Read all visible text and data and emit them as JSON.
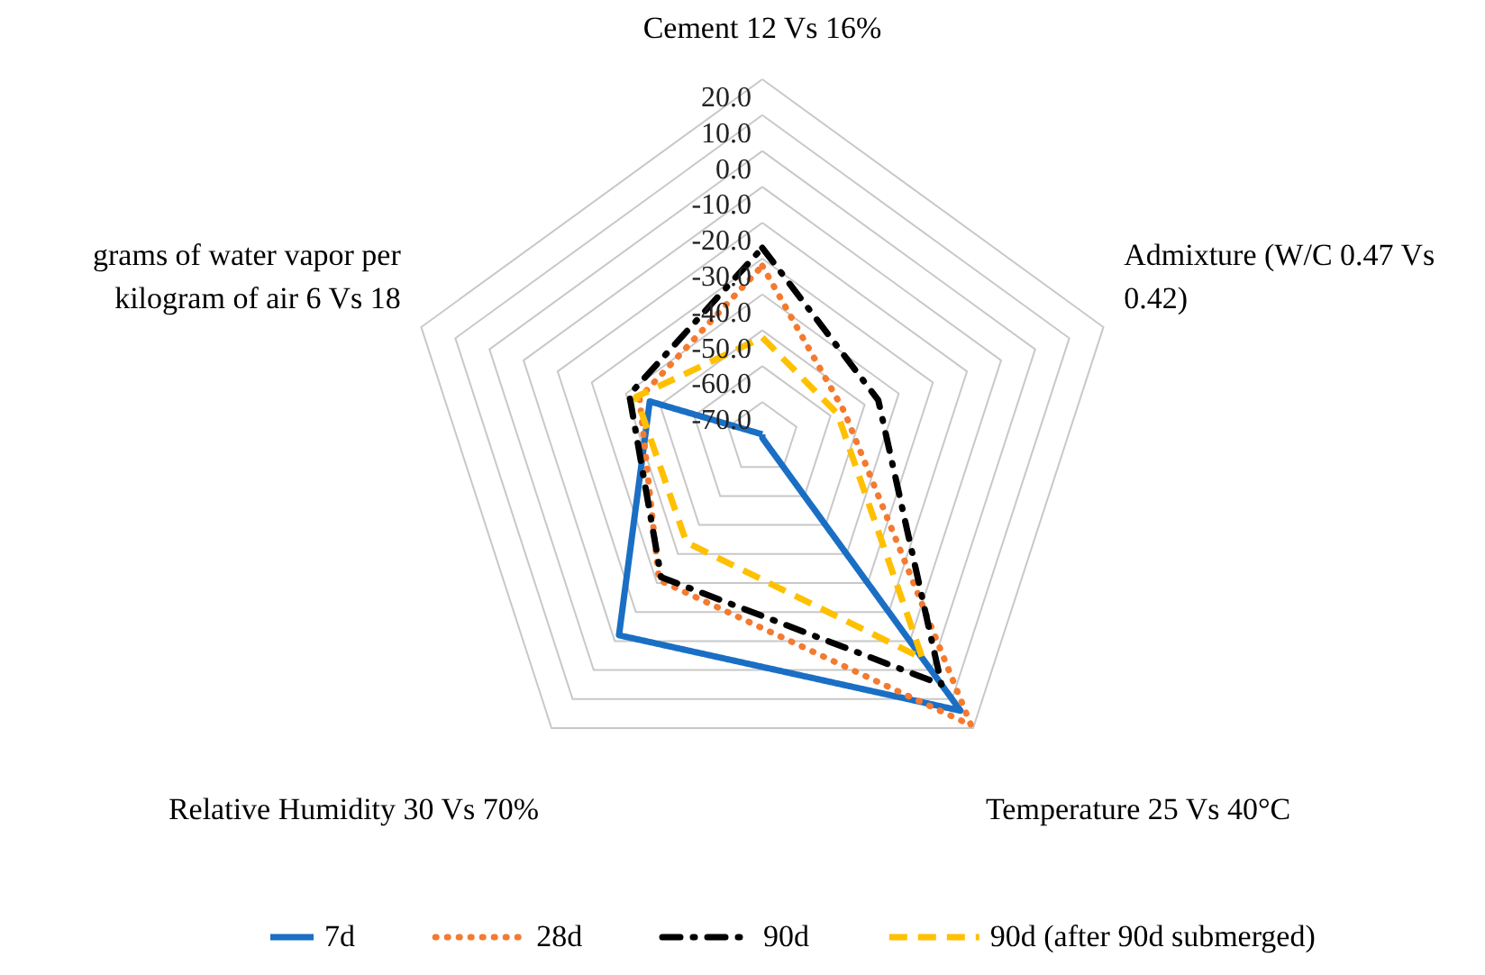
{
  "chart_data": {
    "type": "radar",
    "categories": [
      "Cement 12 Vs 16%",
      "Admixture (W/C 0.47 Vs 0.42)",
      "Temperature 25 Vs 40°C",
      "Relative Humidity 30 Vs 70%",
      "grams of water vapor per kilogram of air 6 Vs 18"
    ],
    "series": [
      {
        "name": "7d",
        "color": "#1a6fc4",
        "line_style": "solid",
        "values": [
          -79,
          -80,
          14,
          -12,
          -47
        ]
      },
      {
        "name": "28d",
        "color": "#f47a30",
        "line_style": "dotted",
        "values": [
          -32,
          -56,
          19,
          -31,
          -44
        ]
      },
      {
        "name": "90d",
        "color": "#000000",
        "line_style": "dashdot",
        "values": [
          -27,
          -46,
          5,
          -32,
          -41
        ]
      },
      {
        "name": "90d (after 90d submerged)",
        "color": "#ffc000",
        "line_style": "dashed",
        "values": [
          -52,
          -58,
          -4,
          -44,
          -43
        ]
      }
    ],
    "ylim": [
      -80,
      20
    ],
    "yticks": [
      {
        "value": -70,
        "label": "-70.0"
      },
      {
        "value": -60,
        "label": "-60.0"
      },
      {
        "value": -50,
        "label": "-50.0"
      },
      {
        "value": -40,
        "label": "-40.0"
      },
      {
        "value": -30,
        "label": "-30.0"
      },
      {
        "value": -20,
        "label": "-20.0"
      },
      {
        "value": -10,
        "label": "-10.0"
      },
      {
        "value": 0,
        "label": "0.0"
      },
      {
        "value": 10,
        "label": "10.0"
      },
      {
        "value": 20,
        "label": "20.0"
      }
    ],
    "grid": true,
    "legend": "bottom"
  }
}
